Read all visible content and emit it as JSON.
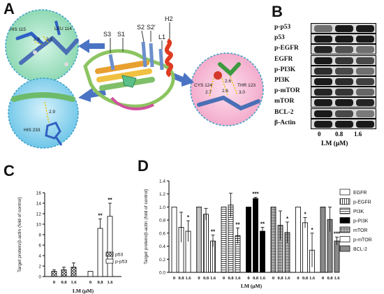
{
  "panels": {
    "a": "A",
    "b": "B",
    "c": "C",
    "d": "D"
  },
  "structure": {
    "strand_labels": [
      "S3",
      "S1",
      "S2",
      "S2'",
      "L1",
      "H2"
    ],
    "insets": {
      "top_left": {
        "residues": [
          "HIS 115",
          "LEU 114"
        ],
        "distances": [
          "2.8",
          "2.3"
        ]
      },
      "bottom_left": {
        "residues": [
          "HIS 233"
        ],
        "distances": [
          "2.9"
        ]
      },
      "right": {
        "residues": [
          "CYS 124",
          "THR 123"
        ],
        "distances": [
          "2.6",
          "2.7",
          "2.6",
          "3.0"
        ]
      }
    }
  },
  "western_blot": {
    "rows": [
      {
        "label": "p-p53",
        "band": [
          0.55,
          1.0,
          1.0
        ]
      },
      {
        "label": "p53",
        "band": [
          1.0,
          1.0,
          1.0
        ]
      },
      {
        "label": "p-EGFR",
        "band": [
          0.95,
          0.7,
          0.55
        ]
      },
      {
        "label": "EGFR",
        "band": [
          1.0,
          0.85,
          0.75
        ]
      },
      {
        "label": "p-PI3K",
        "band": [
          0.9,
          0.75,
          0.55
        ]
      },
      {
        "label": "PI3K",
        "band": [
          1.0,
          0.9,
          0.8
        ]
      },
      {
        "label": "p-mTOR",
        "band": [
          0.95,
          0.85,
          0.6
        ]
      },
      {
        "label": "mTOR",
        "band": [
          1.0,
          1.0,
          0.95
        ]
      },
      {
        "label": "BCL-2",
        "band": [
          1.0,
          0.75,
          0.5
        ]
      },
      {
        "label": "β-Actin",
        "band": [
          1.0,
          1.0,
          1.0
        ]
      }
    ],
    "doses": [
      "0",
      "0.8",
      "1.6"
    ],
    "xlabel": "LM (μM)"
  },
  "chart_data": [
    {
      "type": "bar",
      "panel": "C",
      "ylabel": "Target protein/β-actin (fold of control)",
      "xlabel": "LM (μM)",
      "ylim": [
        0,
        16
      ],
      "yticks": [
        "0",
        "2",
        "4",
        "6",
        "8",
        "10",
        "12",
        "14",
        "16"
      ],
      "categories": [
        "0",
        "0.8",
        "1.6"
      ],
      "series": [
        {
          "name": "p53",
          "values": [
            1.0,
            1.3,
            1.8
          ],
          "errors": [
            0.3,
            0.5,
            0.8
          ],
          "sig": [
            "",
            "",
            ""
          ],
          "fill": "hatch"
        },
        {
          "name": "p-p53",
          "values": [
            1.0,
            9.2,
            11.5
          ],
          "errors": [
            0.0,
            1.8,
            2.5
          ],
          "sig": [
            "",
            "**",
            "**"
          ],
          "fill": "white"
        }
      ],
      "legend": "bottom-right"
    },
    {
      "type": "bar",
      "panel": "D",
      "ylabel": "Target protein/β-actin (fold of control)",
      "xlabel": "LM (μM)",
      "ylim": [
        0,
        1.4
      ],
      "yticks": [
        "0.0",
        "0.2",
        "0.4",
        "0.6",
        "0.8",
        "1.0",
        "1.2",
        "1.4"
      ],
      "categories": [
        "0",
        "0.8",
        "1.6"
      ],
      "series": [
        {
          "name": "EGFR",
          "values": [
            1.0,
            0.69,
            0.63
          ],
          "errors": [
            0.0,
            0.23,
            0.16
          ],
          "sig": [
            "",
            "",
            "*"
          ],
          "fill": "white"
        },
        {
          "name": "p-EGFR",
          "values": [
            1.0,
            0.89,
            0.48
          ],
          "errors": [
            0.0,
            0.09,
            0.09
          ],
          "sig": [
            "",
            "",
            "**"
          ],
          "fill": "vlines"
        },
        {
          "name": "PI3K",
          "values": [
            1.0,
            1.03,
            0.56
          ],
          "errors": [
            0.0,
            0.18,
            0.12
          ],
          "sig": [
            "",
            "",
            "**"
          ],
          "fill": "hlines"
        },
        {
          "name": "p-PI3K",
          "values": [
            1.0,
            1.13,
            0.63
          ],
          "errors": [
            0.0,
            0.02,
            0.06
          ],
          "sig": [
            "",
            "***",
            "**"
          ],
          "fill": "black"
        },
        {
          "name": "mTOR",
          "values": [
            1.0,
            0.72,
            0.61
          ],
          "errors": [
            0.0,
            0.22,
            0.16
          ],
          "sig": [
            "",
            "",
            "*"
          ],
          "fill": "grid"
        },
        {
          "name": "p-mTOR",
          "values": [
            1.0,
            0.76,
            0.34
          ],
          "errors": [
            0.0,
            0.08,
            0.26
          ],
          "sig": [
            "",
            "*",
            "*"
          ],
          "fill": "white"
        },
        {
          "name": "BCL-2",
          "values": [
            1.0,
            0.81,
            0.48
          ],
          "errors": [
            0.0,
            0.19,
            0.06
          ],
          "sig": [
            "",
            "",
            "***"
          ],
          "fill": "grey"
        }
      ],
      "legend": "right"
    }
  ]
}
